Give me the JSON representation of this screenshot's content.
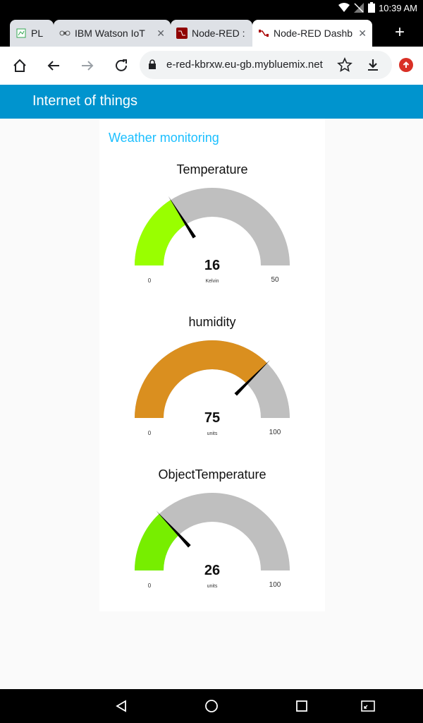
{
  "status_bar": {
    "time": "10:39 AM"
  },
  "browser": {
    "tabs": [
      {
        "label": "PL",
        "icon": "spreadsheet-icon",
        "active": false
      },
      {
        "label": "IBM Watson IoT",
        "icon": "bee-icon",
        "active": false
      },
      {
        "label": "Node-RED : no",
        "icon": "node-red-icon",
        "active": false
      },
      {
        "label": "Node-RED Dashb",
        "icon": "node-red-icon",
        "active": true
      }
    ],
    "url": "e-red-kbrxw.eu-gb.mybluemix.net"
  },
  "app": {
    "title": "Internet of things",
    "group_title": "Weather monitoring",
    "accent": "#0094ce",
    "group_color": "#1bbfff"
  },
  "gauges": [
    {
      "title": "Temperature",
      "value": "16",
      "unit": "Kelvin",
      "min": "0",
      "max": "50",
      "fraction": 0.32,
      "color": "#99ff00"
    },
    {
      "title": "humidity",
      "value": "75",
      "unit": "units",
      "min": "0",
      "max": "100",
      "fraction": 0.75,
      "color": "#da8f1f"
    },
    {
      "title": "ObjectTemperature",
      "value": "26",
      "unit": "units",
      "min": "0",
      "max": "100",
      "fraction": 0.26,
      "color": "#77ee00"
    }
  ]
}
